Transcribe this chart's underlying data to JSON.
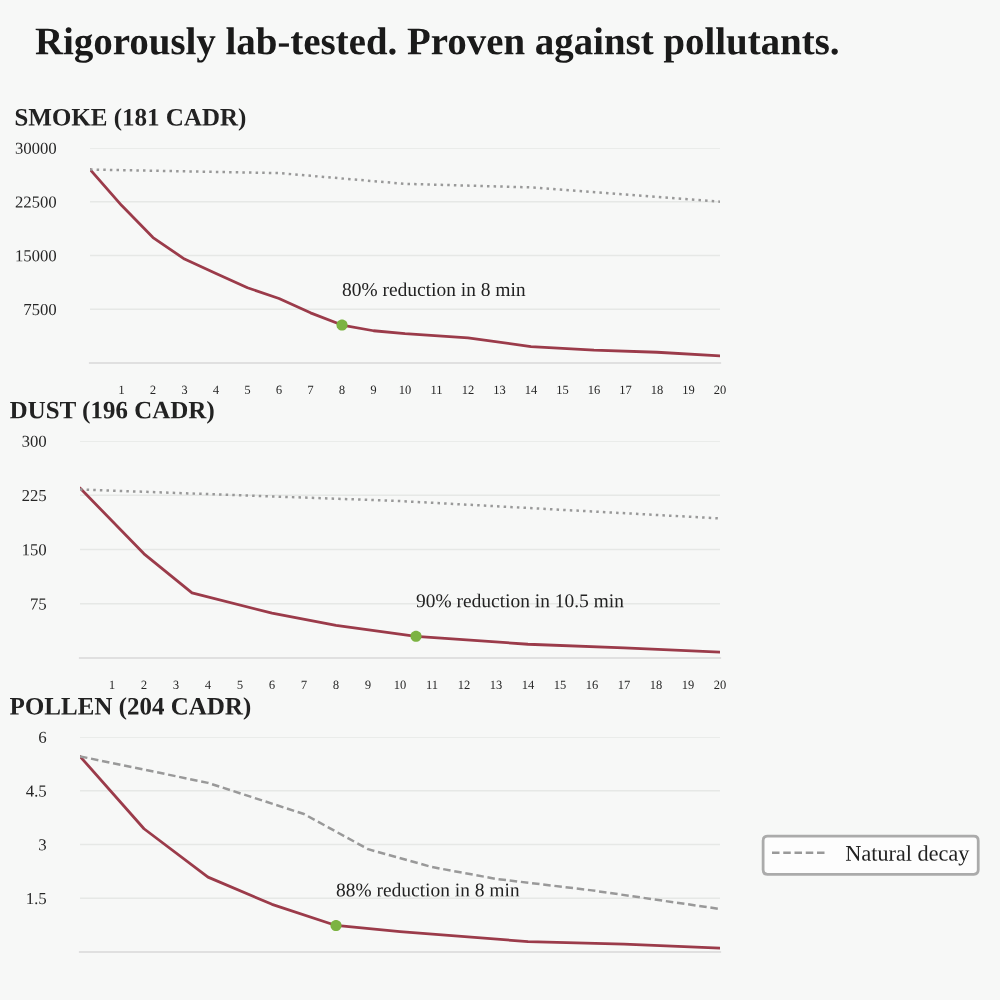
{
  "chart_data": [
    {
      "type": "line",
      "title": "Rigorously lab-tested. Proven against pollutants.",
      "subtitle": "SMOKE (181 CADR)",
      "xlim": [
        0,
        20
      ],
      "xticks": [
        1,
        2,
        3,
        4,
        5,
        6,
        7,
        8,
        9,
        10,
        11,
        12,
        13,
        14,
        15,
        16,
        17,
        18,
        19,
        20
      ],
      "ylim": [
        0,
        30000
      ],
      "yticks": [
        7500,
        15000,
        22500,
        30000
      ],
      "grid": "y",
      "series": [
        {
          "color": "#9b3b4a",
          "line_style": "solid",
          "x": [
            0,
            1,
            2,
            3,
            4,
            5,
            6,
            7,
            8,
            9,
            10,
            12,
            14,
            16,
            18,
            20
          ],
          "values": [
            27000,
            22000,
            17500,
            14500,
            12500,
            10500,
            9000,
            7000,
            5300,
            4500,
            4100,
            3500,
            2300,
            1800,
            1500,
            1000
          ]
        },
        {
          "color": "#999999",
          "line_style": "dotted",
          "x": [
            0,
            6,
            10,
            14,
            17,
            20
          ],
          "values": [
            27000,
            26500,
            25000,
            24500,
            23500,
            22500
          ]
        },
        {
          "type": "scatter",
          "color": "#7cb342",
          "x": [
            8
          ],
          "values": [
            5300
          ]
        }
      ],
      "annotations": [
        "80% reduction in 8 min"
      ]
    },
    {
      "type": "line",
      "subtitle": "DUST (196 CADR)",
      "xlim": [
        0,
        20
      ],
      "xticks": [
        1,
        2,
        3,
        4,
        5,
        6,
        7,
        8,
        9,
        10,
        11,
        12,
        13,
        14,
        15,
        16,
        17,
        18,
        19,
        20
      ],
      "ylim": [
        0,
        300
      ],
      "yticks": [
        75,
        150,
        225,
        300
      ],
      "grid": "y",
      "series": [
        {
          "color": "#9b3b4a",
          "line_style": "solid",
          "x": [
            0,
            2,
            3.5,
            6,
            8,
            10.5,
            14,
            17,
            20
          ],
          "values": [
            235,
            144,
            90,
            62,
            45,
            30,
            19,
            14,
            8
          ]
        },
        {
          "color": "#999999",
          "line_style": "dotted",
          "x": [
            0,
            10,
            20
          ],
          "values": [
            233,
            217,
            193
          ]
        },
        {
          "type": "scatter",
          "color": "#7cb342",
          "x": [
            10.5
          ],
          "values": [
            30
          ]
        }
      ],
      "annotations": [
        "90% reduction in 10.5 min"
      ]
    },
    {
      "type": "line",
      "subtitle": "POLLEN (204 CADR)",
      "xlim": [
        0,
        20
      ],
      "ylim": [
        0,
        6
      ],
      "yticks": [
        1.5,
        3,
        4.5,
        6
      ],
      "grid": "y",
      "tick_labels": "y",
      "legend": "right",
      "series": [
        {
          "color": "#9b3b4a",
          "line_style": "solid",
          "x": [
            0,
            2,
            4,
            6,
            8,
            10,
            14,
            17,
            20
          ],
          "values": [
            5.46,
            3.44,
            2.09,
            1.33,
            0.74,
            0.57,
            0.29,
            0.22,
            0.11
          ]
        },
        {
          "name": "Natural decay",
          "color": "#999999",
          "line_style": "dashed",
          "x": [
            0,
            4,
            7,
            9,
            11,
            13,
            16,
            20
          ],
          "values": [
            5.46,
            4.72,
            3.85,
            2.87,
            2.37,
            2.04,
            1.72,
            1.2
          ]
        },
        {
          "type": "scatter",
          "color": "#7cb342",
          "x": [
            8
          ],
          "values": [
            0.74
          ]
        }
      ],
      "annotations": [
        "88% reduction in 8 min"
      ]
    }
  ]
}
